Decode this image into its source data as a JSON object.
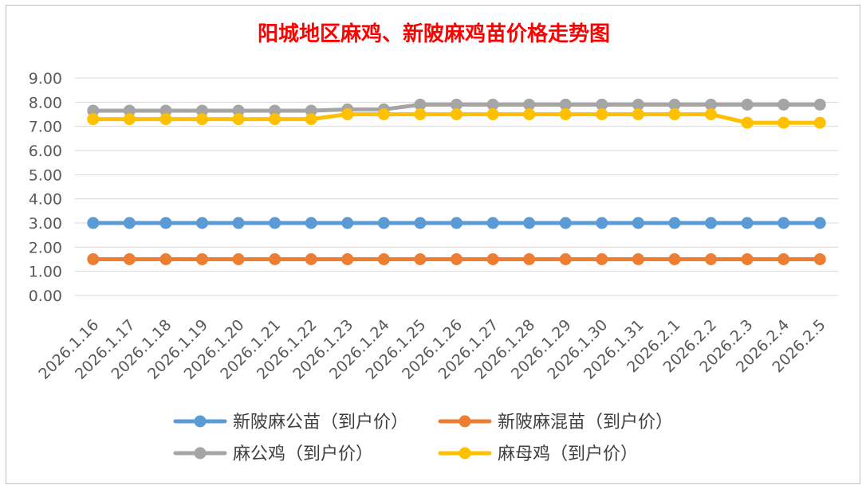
{
  "chart_data": {
    "type": "line",
    "title": "阳城地区麻鸡、新陂麻鸡苗价格走势图",
    "xlabel": "",
    "ylabel": "",
    "ylim": [
      0,
      9
    ],
    "y_ticks": [
      "0.00",
      "1.00",
      "2.00",
      "3.00",
      "4.00",
      "5.00",
      "6.00",
      "7.00",
      "8.00",
      "9.00"
    ],
    "grid": true,
    "legend_position": "bottom",
    "categories": [
      "2026.1.16",
      "2026.1.17",
      "2026.1.18",
      "2026.1.19",
      "2026.1.20",
      "2026.1.21",
      "2026.1.22",
      "2026.1.23",
      "2026.1.24",
      "2026.1.25",
      "2026.1.26",
      "2026.1.27",
      "2026.1.28",
      "2026.1.29",
      "2026.1.30",
      "2026.1.31",
      "2026.2.1",
      "2026.2.2",
      "2026.2.3",
      "2026.2.4",
      "2026.2.5"
    ],
    "series": [
      {
        "name": "新陂麻公苗（到户价）",
        "color": "#5b9bd5",
        "values": [
          3.0,
          3.0,
          3.0,
          3.0,
          3.0,
          3.0,
          3.0,
          3.0,
          3.0,
          3.0,
          3.0,
          3.0,
          3.0,
          3.0,
          3.0,
          3.0,
          3.0,
          3.0,
          3.0,
          3.0,
          3.0
        ]
      },
      {
        "name": "新陂麻混苗（到户价）",
        "color": "#ed7d31",
        "values": [
          1.5,
          1.5,
          1.5,
          1.5,
          1.5,
          1.5,
          1.5,
          1.5,
          1.5,
          1.5,
          1.5,
          1.5,
          1.5,
          1.5,
          1.5,
          1.5,
          1.5,
          1.5,
          1.5,
          1.5,
          1.5
        ]
      },
      {
        "name": "麻公鸡（到户价）",
        "color": "#a5a5a5",
        "values": [
          7.65,
          7.65,
          7.65,
          7.65,
          7.65,
          7.65,
          7.65,
          7.7,
          7.7,
          7.9,
          7.9,
          7.9,
          7.9,
          7.9,
          7.9,
          7.9,
          7.9,
          7.9,
          7.9,
          7.9,
          7.9
        ]
      },
      {
        "name": "麻母鸡（到户价）",
        "color": "#ffc000",
        "values": [
          7.3,
          7.3,
          7.3,
          7.3,
          7.3,
          7.3,
          7.3,
          7.5,
          7.5,
          7.5,
          7.5,
          7.5,
          7.5,
          7.5,
          7.5,
          7.5,
          7.5,
          7.5,
          7.15,
          7.15,
          7.15
        ]
      }
    ]
  }
}
